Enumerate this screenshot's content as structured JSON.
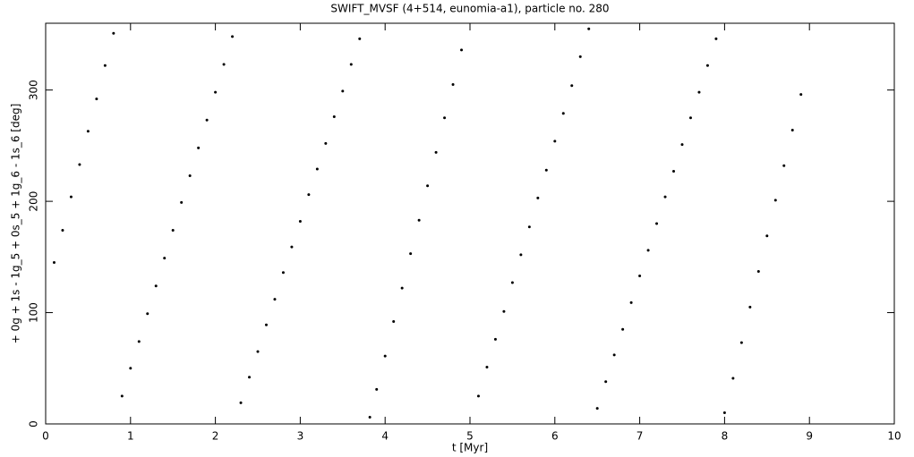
{
  "chart_data": {
    "type": "scatter",
    "title": "SWIFT_MVSF (4+514, eunomia-a1), particle no. 280",
    "x_label": "t [Myr]",
    "y_label": "+ 0g + 1s - 1g_5 + 0s_5 + 1g_6 - 1s_6 [deg]",
    "xlim": [
      0,
      10
    ],
    "xticks": [
      0,
      1,
      2,
      3,
      4,
      5,
      6,
      7,
      8,
      9,
      10
    ],
    "ylim": [
      0,
      360
    ],
    "yticks": [
      0,
      100,
      200,
      300
    ],
    "color": "#000000",
    "x": [
      0.1,
      0.2,
      0.3,
      0.4,
      0.5,
      0.6,
      0.7,
      0.8,
      0.9,
      1.0,
      1.1,
      1.2,
      1.3,
      1.4,
      1.5,
      1.6,
      1.7,
      1.8,
      1.9,
      2.0,
      2.1,
      2.2,
      2.3,
      2.4,
      2.5,
      2.6,
      2.7,
      2.8,
      2.9,
      3.0,
      3.1,
      3.2,
      3.3,
      3.4,
      3.5,
      3.6,
      3.7,
      3.82,
      3.9,
      4.0,
      4.1,
      4.2,
      4.3,
      4.4,
      4.5,
      4.6,
      4.7,
      4.8,
      4.9,
      5.1,
      5.2,
      5.3,
      5.4,
      5.5,
      5.6,
      5.7,
      5.8,
      5.9,
      6.0,
      6.1,
      6.2,
      6.3,
      6.4,
      6.5,
      6.6,
      6.7,
      6.8,
      6.9,
      7.0,
      7.1,
      7.2,
      7.3,
      7.4,
      7.5,
      7.6,
      7.7,
      7.8,
      7.9,
      8.0,
      8.1,
      8.2,
      8.3,
      8.4,
      8.5,
      8.6,
      8.7,
      8.8,
      8.9
    ],
    "values": [
      145,
      174,
      204,
      233,
      263,
      292,
      322,
      351,
      25,
      50,
      74,
      99,
      124,
      149,
      174,
      199,
      223,
      248,
      273,
      298,
      323,
      348,
      19,
      42,
      65,
      89,
      112,
      136,
      159,
      182,
      206,
      229,
      252,
      276,
      299,
      323,
      346,
      6,
      31,
      61,
      92,
      122,
      153,
      183,
      214,
      244,
      275,
      305,
      336,
      25,
      51,
      76,
      101,
      127,
      152,
      177,
      203,
      228,
      254,
      279,
      304,
      330,
      355,
      14,
      38,
      62,
      85,
      109,
      133,
      156,
      180,
      204,
      227,
      251,
      275,
      298,
      322,
      346,
      10,
      41,
      73,
      105,
      137,
      169,
      201,
      232,
      264,
      296
    ]
  }
}
